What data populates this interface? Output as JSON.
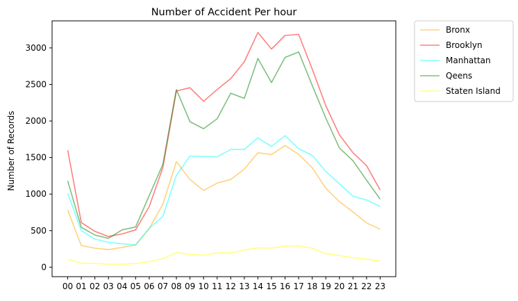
{
  "chart_data": {
    "type": "line",
    "title": "Number of Accident Per hour",
    "xlabel": "",
    "ylabel": "Number of Records",
    "categories": [
      "00",
      "01",
      "02",
      "03",
      "04",
      "05",
      "06",
      "07",
      "08",
      "09",
      "10",
      "11",
      "12",
      "13",
      "14",
      "15",
      "16",
      "17",
      "18",
      "19",
      "20",
      "21",
      "22",
      "23"
    ],
    "ylim": [
      -130,
      3370
    ],
    "yticks": [
      0,
      500,
      1000,
      1500,
      2000,
      2500,
      3000
    ],
    "grid": false,
    "legend_position": "outside-top-right",
    "series": [
      {
        "name": "Bronx",
        "color": "#ffa500",
        "values": [
          780,
          295,
          260,
          240,
          270,
          305,
          530,
          860,
          1445,
          1200,
          1050,
          1150,
          1200,
          1340,
          1565,
          1540,
          1665,
          1545,
          1360,
          1080,
          895,
          755,
          605,
          520
        ]
      },
      {
        "name": "Brooklyn",
        "color": "#ff0000",
        "values": [
          1600,
          610,
          490,
          420,
          455,
          510,
          830,
          1360,
          2410,
          2455,
          2270,
          2430,
          2580,
          2810,
          3210,
          2985,
          3170,
          3185,
          2710,
          2210,
          1810,
          1565,
          1390,
          1055
        ]
      },
      {
        "name": "Manhattan",
        "color": "#00ffff",
        "values": [
          1010,
          500,
          385,
          340,
          320,
          305,
          530,
          695,
          1255,
          1520,
          1515,
          1510,
          1610,
          1610,
          1770,
          1650,
          1800,
          1620,
          1530,
          1310,
          1140,
          970,
          920,
          830
        ]
      },
      {
        "name": "Qeens",
        "color": "#008000",
        "values": [
          1180,
          545,
          440,
          395,
          510,
          550,
          980,
          1405,
          2430,
          1990,
          1895,
          2030,
          2380,
          2310,
          2855,
          2525,
          2870,
          2945,
          2485,
          2040,
          1630,
          1455,
          1190,
          930
        ]
      },
      {
        "name": "Staten Island",
        "color": "#ffff00",
        "values": [
          105,
          55,
          50,
          40,
          40,
          50,
          75,
          115,
          200,
          175,
          165,
          195,
          195,
          235,
          265,
          260,
          290,
          290,
          260,
          185,
          160,
          130,
          110,
          85
        ]
      }
    ]
  }
}
